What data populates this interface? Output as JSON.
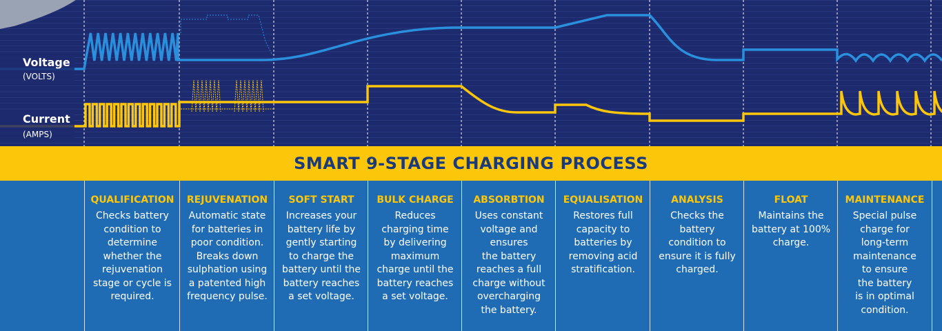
{
  "axis_labels": {
    "voltage": "Voltage",
    "voltage_unit": "(VOLTS)",
    "current": "Current",
    "current_unit": "(AMPS)"
  },
  "title": "SMART 9-STAGE CHARGING PROCESS",
  "stages": [
    {
      "title": "QUALIFICATION",
      "lines": [
        "Checks battery",
        "condition to",
        "determine",
        "whether the",
        "rejuvenation",
        "stage or cycle is",
        "required."
      ]
    },
    {
      "title": "REJUVENATION",
      "lines": [
        "Automatic state",
        "for batteries in",
        "poor condition.",
        "Breaks down",
        "sulphation using",
        "a patented high",
        "frequency pulse."
      ]
    },
    {
      "title": "SOFT START",
      "lines": [
        "Increases your",
        "battery life by",
        "gently starting",
        "to charge the",
        "battery until the",
        "battery reaches",
        "a set voltage."
      ]
    },
    {
      "title": "BULK CHARGE",
      "lines": [
        "Reduces",
        "charging time",
        "by delivering",
        "maximum",
        "charge until the",
        "battery reaches",
        "a set voltage."
      ]
    },
    {
      "title": "ABSORBTION",
      "lines": [
        "Uses constant",
        "voltage and",
        "ensures",
        "the battery",
        "reaches a full",
        "charge without",
        "overcharging",
        "the battery."
      ]
    },
    {
      "title": "EQUALISATION",
      "lines": [
        "Restores full",
        "capacity to",
        "batteries by",
        "removing acid",
        "stratification."
      ]
    },
    {
      "title": "ANALYSIS",
      "lines": [
        "Checks the",
        "battery",
        "condition to",
        "ensure it is fully",
        "charged."
      ]
    },
    {
      "title": "FLOAT",
      "lines": [
        "Maintains the",
        "battery at 100%",
        "charge."
      ]
    },
    {
      "title": "MAINTENANCE",
      "lines": [
        "Special pulse",
        "charge for",
        "long-term",
        "maintenance",
        "to ensure",
        "the battery",
        "is in optimal",
        "condition."
      ]
    }
  ]
}
